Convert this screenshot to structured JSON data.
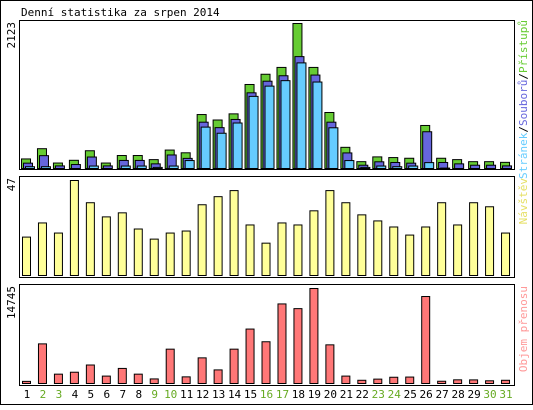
{
  "title": "Denní statistika za srpen 2014",
  "colors": {
    "bar_outline": "#000000",
    "access": "#66cc33",
    "files": "#6666dd",
    "pages": "#66ccff",
    "visits": "#ffff99",
    "traffic": "#ff7777",
    "weekend_label": "#66aa22",
    "weekday_label": "#000000",
    "frame": "#000000"
  },
  "chart_data": [
    {
      "type": "bar",
      "name": "hits",
      "ymax_label": "2123",
      "ylim": [
        0,
        2123
      ],
      "legend": {
        "pages": "Stránek",
        "sep1": "/",
        "files": "Souborů",
        "sep2": "/",
        "access": "Přístupů"
      },
      "series": [
        {
          "name": "Přístupů",
          "values": [
            140,
            290,
            80,
            120,
            260,
            80,
            190,
            190,
            130,
            270,
            230,
            790,
            710,
            800,
            1230,
            1380,
            1480,
            2123,
            1480,
            820,
            310,
            100,
            170,
            160,
            150,
            630,
            150,
            130,
            100,
            100,
            90
          ]
        },
        {
          "name": "Souborů",
          "values": [
            100,
            210,
            60,
            80,
            190,
            60,
            140,
            140,
            90,
            220,
            170,
            700,
            620,
            740,
            1130,
            1300,
            1380,
            1660,
            1390,
            700,
            250,
            70,
            120,
            110,
            100,
            560,
            110,
            90,
            70,
            70,
            60
          ]
        },
        {
          "name": "Stránek",
          "values": [
            70,
            70,
            30,
            30,
            80,
            40,
            80,
            80,
            60,
            80,
            160,
            650,
            560,
            710,
            1100,
            1250,
            1330,
            1590,
            1310,
            640,
            160,
            60,
            80,
            70,
            80,
            130,
            50,
            40,
            40,
            40,
            40
          ]
        }
      ]
    },
    {
      "type": "bar",
      "name": "visits",
      "ymax_label": "47",
      "ylim": [
        0,
        47
      ],
      "legend": {
        "visits": "Návštěv"
      },
      "series": [
        {
          "name": "Návštěv",
          "values": [
            19,
            26,
            21,
            47,
            36,
            29,
            31,
            23,
            18,
            21,
            22,
            35,
            39,
            42,
            25,
            16,
            26,
            25,
            32,
            42,
            36,
            30,
            27,
            24,
            20,
            24,
            36,
            25,
            36,
            34,
            21
          ]
        }
      ]
    },
    {
      "type": "bar",
      "name": "traffic",
      "ymax_label": "14745",
      "ylim": [
        0,
        14745
      ],
      "legend": {
        "traffic": "Objem přenosu"
      },
      "series": [
        {
          "name": "Objem přenosu",
          "values": [
            330,
            6150,
            1450,
            1750,
            2870,
            1150,
            2340,
            1450,
            710,
            5330,
            1030,
            3980,
            2110,
            5330,
            8450,
            6480,
            12350,
            11620,
            14745,
            6000,
            1150,
            500,
            680,
            970,
            1000,
            13500,
            350,
            570,
            560,
            420,
            500
          ]
        }
      ]
    }
  ],
  "x_labels": [
    "1",
    "2",
    "3",
    "4",
    "5",
    "6",
    "7",
    "8",
    "9",
    "10",
    "11",
    "12",
    "13",
    "14",
    "15",
    "16",
    "17",
    "18",
    "19",
    "20",
    "21",
    "22",
    "23",
    "24",
    "25",
    "26",
    "27",
    "28",
    "29",
    "30",
    "31"
  ],
  "weekend_days": [
    "2",
    "3",
    "9",
    "10",
    "16",
    "17",
    "23",
    "24",
    "30",
    "31"
  ]
}
